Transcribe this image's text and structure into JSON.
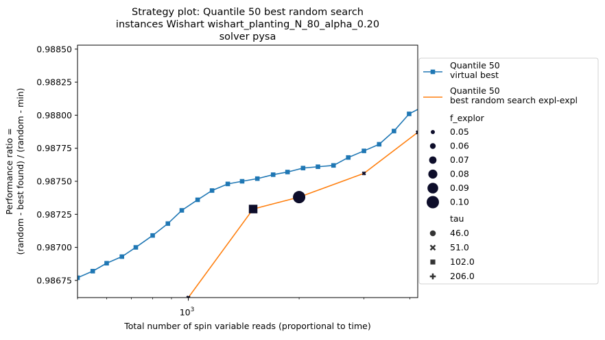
{
  "chart_data": {
    "type": "line",
    "title_lines": [
      "Strategy plot: Quantile 50 best random search",
      "instances Wishart wishart_planting_N_80_alpha_0.20",
      "solver pysa"
    ],
    "xlabel": "Total number of spin variable reads (proportional to time)",
    "ylabel_lines": [
      "Performance ratio =",
      "(random - best found) / (random - min)"
    ],
    "x_scale": "log",
    "xlim": [
      500,
      4200
    ],
    "ylim": [
      0.98662,
      0.98853
    ],
    "x_tick_labels": [
      {
        "value": 1000,
        "base": "10",
        "exponent": "3"
      }
    ],
    "y_ticks": [
      {
        "value": 0.98675,
        "label": "0.98675"
      },
      {
        "value": 0.987,
        "label": "0.98700"
      },
      {
        "value": 0.98725,
        "label": "0.98725"
      },
      {
        "value": 0.9875,
        "label": "0.98750"
      },
      {
        "value": 0.98775,
        "label": "0.98775"
      },
      {
        "value": 0.988,
        "label": "0.98800"
      },
      {
        "value": 0.98825,
        "label": "0.98825"
      },
      {
        "value": 0.9885,
        "label": "0.98850"
      }
    ],
    "grid": false,
    "legend_position": "outside-right",
    "series": [
      {
        "name": "Quantile 50\n virtual best",
        "color": "#1f77b4",
        "marker": "square",
        "points": [
          {
            "x": 500,
            "y": 0.98677
          },
          {
            "x": 550,
            "y": 0.98682
          },
          {
            "x": 600,
            "y": 0.98688
          },
          {
            "x": 660,
            "y": 0.98693
          },
          {
            "x": 720,
            "y": 0.987
          },
          {
            "x": 800,
            "y": 0.98709
          },
          {
            "x": 880,
            "y": 0.98718
          },
          {
            "x": 960,
            "y": 0.98728
          },
          {
            "x": 1060,
            "y": 0.98736
          },
          {
            "x": 1160,
            "y": 0.98743
          },
          {
            "x": 1280,
            "y": 0.98748
          },
          {
            "x": 1400,
            "y": 0.9875
          },
          {
            "x": 1540,
            "y": 0.98752
          },
          {
            "x": 1700,
            "y": 0.98755
          },
          {
            "x": 1860,
            "y": 0.98757
          },
          {
            "x": 2050,
            "y": 0.9876
          },
          {
            "x": 2250,
            "y": 0.98761
          },
          {
            "x": 2480,
            "y": 0.98762
          },
          {
            "x": 2720,
            "y": 0.98768
          },
          {
            "x": 3000,
            "y": 0.98773
          },
          {
            "x": 3300,
            "y": 0.98778
          },
          {
            "x": 3620,
            "y": 0.98788
          },
          {
            "x": 3980,
            "y": 0.98801
          },
          {
            "x": 4380,
            "y": 0.98807
          }
        ]
      },
      {
        "name": "Quantile 50\n best random search expl-expl",
        "color": "#ff7f0e",
        "marker": "none",
        "points": [
          {
            "x": 1000,
            "y": 0.98662
          },
          {
            "x": 1500,
            "y": 0.98729
          },
          {
            "x": 2000,
            "y": 0.98738
          },
          {
            "x": 3000,
            "y": 0.98756
          },
          {
            "x": 4200,
            "y": 0.98787
          }
        ]
      }
    ],
    "scatter_points": [
      {
        "x": 1500,
        "y": 0.98729,
        "f_explor": 0.09,
        "tau": 102.0
      },
      {
        "x": 2000,
        "y": 0.98738,
        "f_explor": 0.1,
        "tau": 46.0
      },
      {
        "x": 3000,
        "y": 0.98756,
        "f_explor": 0.05,
        "tau": 51.0
      },
      {
        "x": 1000,
        "y": 0.98662,
        "f_explor": 0.05,
        "tau": 51.0
      },
      {
        "x": 4200,
        "y": 0.98787,
        "f_explor": 0.05,
        "tau": 51.0
      }
    ],
    "scatter_color": "#0d0d2a",
    "legend": {
      "line_entries": [
        {
          "lines": [
            "Quantile 50",
            " virtual best"
          ],
          "color": "#1f77b4",
          "marker": "square"
        },
        {
          "lines": [
            "Quantile 50",
            " best random search expl-expl"
          ],
          "color": "#ff7f0e",
          "marker": "none"
        }
      ],
      "size_title": "f_explor",
      "size_entries": [
        {
          "label": "0.05",
          "value": 0.05
        },
        {
          "label": "0.06",
          "value": 0.06
        },
        {
          "label": "0.07",
          "value": 0.07
        },
        {
          "label": "0.08",
          "value": 0.08
        },
        {
          "label": "0.09",
          "value": 0.09
        },
        {
          "label": "0.10",
          "value": 0.1
        }
      ],
      "style_title": "tau",
      "style_entries": [
        {
          "label": "46.0",
          "marker": "circle"
        },
        {
          "label": "51.0",
          "marker": "x"
        },
        {
          "label": "102.0",
          "marker": "square"
        },
        {
          "label": "206.0",
          "marker": "plus"
        }
      ]
    }
  }
}
